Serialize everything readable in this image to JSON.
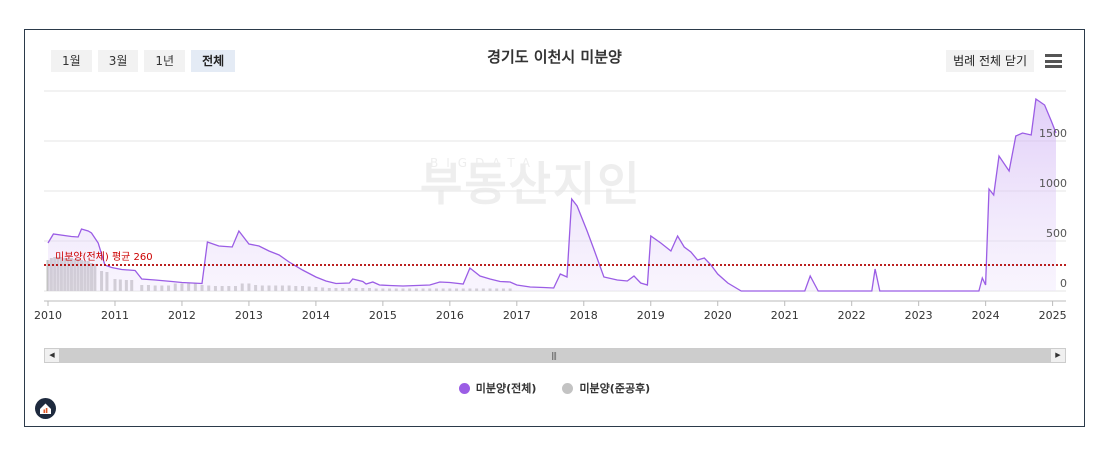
{
  "header": {
    "range_buttons": [
      "1월",
      "3월",
      "1년",
      "전체"
    ],
    "active_range": "전체",
    "title": "경기도 이천시 미분양",
    "legend_toggle_label": "범례 전체 닫기"
  },
  "watermark": {
    "small": "BIGDATA",
    "large": "부동산지인"
  },
  "colors": {
    "total": "#9b5de5",
    "completed": "#c3c3c3",
    "average": "#b00000"
  },
  "legend": [
    {
      "label": "미분양(전체)",
      "color": "#9b5de5"
    },
    {
      "label": "미분양(준공후)",
      "color": "#c3c3c3"
    }
  ],
  "icons": {
    "menu": "hamburger-icon",
    "home": "home-logo-icon"
  },
  "chart_data": {
    "type": "area",
    "xlabel": "",
    "ylabel": "",
    "ylim": [
      0,
      2000
    ],
    "xlim": [
      2010,
      2025.2
    ],
    "x_ticks": [
      "2010",
      "2011",
      "2012",
      "2013",
      "2014",
      "2015",
      "2016",
      "2017",
      "2018",
      "2019",
      "2020",
      "2021",
      "2022",
      "2023",
      "2024",
      "2025"
    ],
    "y_ticks": [
      "0",
      "500",
      "1000",
      "1500"
    ],
    "average_line": {
      "label": "미분양(전체) 평균 260",
      "value": 260
    },
    "series": [
      {
        "name": "미분양(전체)",
        "type": "area",
        "points": [
          [
            2010.0,
            480
          ],
          [
            2010.08,
            570
          ],
          [
            2010.35,
            545
          ],
          [
            2010.45,
            540
          ],
          [
            2010.5,
            620
          ],
          [
            2010.6,
            600
          ],
          [
            2010.65,
            580
          ],
          [
            2010.75,
            480
          ],
          [
            2010.85,
            260
          ],
          [
            2010.95,
            235
          ],
          [
            2011.1,
            215
          ],
          [
            2011.3,
            205
          ],
          [
            2011.4,
            120
          ],
          [
            2011.6,
            110
          ],
          [
            2011.85,
            95
          ],
          [
            2012.0,
            85
          ],
          [
            2012.15,
            80
          ],
          [
            2012.3,
            75
          ],
          [
            2012.38,
            490
          ],
          [
            2012.55,
            450
          ],
          [
            2012.75,
            440
          ],
          [
            2012.85,
            600
          ],
          [
            2013.0,
            470
          ],
          [
            2013.15,
            450
          ],
          [
            2013.3,
            400
          ],
          [
            2013.45,
            360
          ],
          [
            2013.6,
            290
          ],
          [
            2013.8,
            210
          ],
          [
            2014.0,
            140
          ],
          [
            2014.15,
            100
          ],
          [
            2014.3,
            75
          ],
          [
            2014.5,
            80
          ],
          [
            2014.55,
            120
          ],
          [
            2014.7,
            95
          ],
          [
            2014.75,
            70
          ],
          [
            2014.85,
            90
          ],
          [
            2014.95,
            60
          ],
          [
            2015.1,
            55
          ],
          [
            2015.3,
            50
          ],
          [
            2015.5,
            55
          ],
          [
            2015.7,
            60
          ],
          [
            2015.85,
            90
          ],
          [
            2016.0,
            85
          ],
          [
            2016.2,
            70
          ],
          [
            2016.3,
            230
          ],
          [
            2016.45,
            150
          ],
          [
            2016.6,
            120
          ],
          [
            2016.75,
            95
          ],
          [
            2016.9,
            90
          ],
          [
            2017.0,
            60
          ],
          [
            2017.2,
            40
          ],
          [
            2017.4,
            35
          ],
          [
            2017.55,
            30
          ],
          [
            2017.65,
            170
          ],
          [
            2017.75,
            140
          ],
          [
            2017.82,
            920
          ],
          [
            2017.9,
            850
          ],
          [
            2018.05,
            600
          ],
          [
            2018.15,
            420
          ],
          [
            2018.3,
            140
          ],
          [
            2018.5,
            110
          ],
          [
            2018.65,
            100
          ],
          [
            2018.75,
            150
          ],
          [
            2018.85,
            80
          ],
          [
            2018.95,
            60
          ],
          [
            2019.0,
            550
          ],
          [
            2019.15,
            480
          ],
          [
            2019.3,
            400
          ],
          [
            2019.4,
            550
          ],
          [
            2019.5,
            440
          ],
          [
            2019.6,
            390
          ],
          [
            2019.7,
            310
          ],
          [
            2019.8,
            330
          ],
          [
            2019.9,
            260
          ],
          [
            2020.0,
            170
          ],
          [
            2020.15,
            80
          ],
          [
            2020.35,
            0
          ],
          [
            2020.7,
            0
          ],
          [
            2021.0,
            0
          ],
          [
            2021.3,
            0
          ],
          [
            2021.38,
            150
          ],
          [
            2021.5,
            0
          ],
          [
            2022.0,
            0
          ],
          [
            2022.3,
            0
          ],
          [
            2022.35,
            220
          ],
          [
            2022.42,
            0
          ],
          [
            2023.0,
            0
          ],
          [
            2023.5,
            0
          ],
          [
            2023.9,
            0
          ],
          [
            2023.95,
            130
          ],
          [
            2024.0,
            60
          ],
          [
            2024.05,
            1020
          ],
          [
            2024.12,
            960
          ],
          [
            2024.2,
            1350
          ],
          [
            2024.35,
            1200
          ],
          [
            2024.45,
            1550
          ],
          [
            2024.55,
            1580
          ],
          [
            2024.68,
            1560
          ],
          [
            2024.75,
            1920
          ],
          [
            2024.88,
            1860
          ],
          [
            2024.98,
            1700
          ],
          [
            2025.05,
            1580
          ]
        ]
      },
      {
        "name": "미분양(준공후)",
        "type": "bar",
        "points": [
          [
            2010.0,
            310
          ],
          [
            2010.05,
            330
          ],
          [
            2010.1,
            340
          ],
          [
            2010.15,
            340
          ],
          [
            2010.2,
            340
          ],
          [
            2010.25,
            330
          ],
          [
            2010.3,
            330
          ],
          [
            2010.35,
            330
          ],
          [
            2010.4,
            320
          ],
          [
            2010.45,
            320
          ],
          [
            2010.5,
            310
          ],
          [
            2010.55,
            300
          ],
          [
            2010.6,
            300
          ],
          [
            2010.65,
            280
          ],
          [
            2010.7,
            270
          ],
          [
            2010.8,
            200
          ],
          [
            2010.88,
            190
          ],
          [
            2011.0,
            120
          ],
          [
            2011.08,
            115
          ],
          [
            2011.17,
            110
          ],
          [
            2011.25,
            110
          ],
          [
            2011.4,
            60
          ],
          [
            2011.5,
            60
          ],
          [
            2011.6,
            55
          ],
          [
            2011.7,
            55
          ],
          [
            2011.8,
            55
          ],
          [
            2011.9,
            75
          ],
          [
            2012.0,
            75
          ],
          [
            2012.1,
            75
          ],
          [
            2012.2,
            75
          ],
          [
            2012.3,
            60
          ],
          [
            2012.4,
            55
          ],
          [
            2012.5,
            50
          ],
          [
            2012.6,
            50
          ],
          [
            2012.7,
            50
          ],
          [
            2012.8,
            50
          ],
          [
            2012.9,
            75
          ],
          [
            2013.0,
            75
          ],
          [
            2013.1,
            60
          ],
          [
            2013.2,
            55
          ],
          [
            2013.3,
            55
          ],
          [
            2013.4,
            55
          ],
          [
            2013.5,
            55
          ],
          [
            2013.6,
            55
          ],
          [
            2013.7,
            50
          ],
          [
            2013.8,
            50
          ],
          [
            2013.9,
            45
          ],
          [
            2014.0,
            40
          ],
          [
            2014.1,
            35
          ],
          [
            2014.2,
            30
          ],
          [
            2014.3,
            30
          ],
          [
            2014.4,
            30
          ],
          [
            2014.5,
            30
          ],
          [
            2014.6,
            30
          ],
          [
            2014.7,
            30
          ],
          [
            2014.8,
            30
          ],
          [
            2014.9,
            25
          ],
          [
            2015.0,
            25
          ],
          [
            2015.1,
            25
          ],
          [
            2015.2,
            25
          ],
          [
            2015.3,
            25
          ],
          [
            2015.4,
            25
          ],
          [
            2015.5,
            25
          ],
          [
            2015.6,
            25
          ],
          [
            2015.7,
            25
          ],
          [
            2015.8,
            25
          ],
          [
            2015.9,
            25
          ],
          [
            2016.0,
            25
          ],
          [
            2016.1,
            25
          ],
          [
            2016.2,
            25
          ],
          [
            2016.3,
            25
          ],
          [
            2016.4,
            25
          ],
          [
            2016.5,
            25
          ],
          [
            2016.6,
            25
          ],
          [
            2016.7,
            25
          ],
          [
            2016.8,
            25
          ],
          [
            2016.9,
            25
          ]
        ]
      }
    ],
    "grid": true,
    "legend_position": "bottom"
  }
}
